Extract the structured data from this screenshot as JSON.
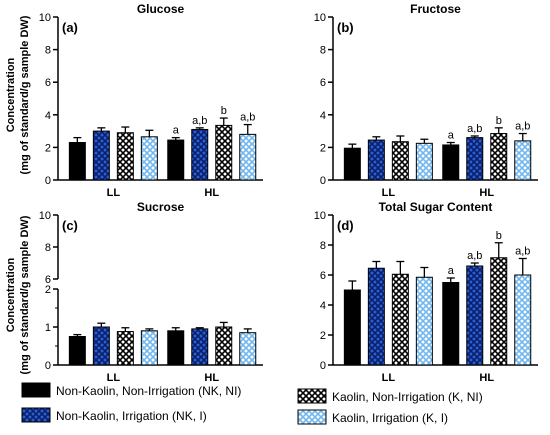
{
  "figure": {
    "ylabel_line1": "Concentration",
    "ylabel_line2": "(mg of standard/g sample DW)"
  },
  "legend": {
    "items": [
      {
        "label": "Non-Kaolin, Non-Irrigation (NK, NI)",
        "pattern": "solid-black"
      },
      {
        "label": "Kaolin, Non-Irrigation (K, NI)",
        "pattern": "check-black"
      },
      {
        "label": "Non-Kaolin, Irrigation (NK, I)",
        "pattern": "check-blue"
      },
      {
        "label": "Kaolin, Irrigation (K, I)",
        "pattern": "check-lightblue"
      }
    ]
  },
  "colors": {
    "nk_ni": "#000000",
    "nk_i": "#2b5fcf",
    "k_ni": "#000000",
    "k_i": "#6fb7ee"
  },
  "chart_data": [
    {
      "type": "bar",
      "panel": "(a)",
      "title": "Glucose",
      "categories": [
        "LL",
        "HL"
      ],
      "ylim": [
        0,
        10
      ],
      "yticks": [
        0,
        2,
        4,
        6,
        8,
        10
      ],
      "series": [
        {
          "name": "Non-Kaolin, Non-Irrigation (NK, NI)",
          "values": [
            2.3,
            2.45
          ],
          "errors": [
            0.3,
            0.15
          ],
          "letters": [
            "",
            "a"
          ]
        },
        {
          "name": "Non-Kaolin, Irrigation (NK, I)",
          "values": [
            3.0,
            3.1
          ],
          "errors": [
            0.2,
            0.1
          ],
          "letters": [
            "",
            "a,b"
          ]
        },
        {
          "name": "Kaolin, Non-Irrigation (K, NI)",
          "values": [
            2.9,
            3.35
          ],
          "errors": [
            0.35,
            0.45
          ],
          "letters": [
            "",
            "b"
          ]
        },
        {
          "name": "Kaolin, Irrigation (K, I)",
          "values": [
            2.65,
            2.8
          ],
          "errors": [
            0.4,
            0.6
          ],
          "letters": [
            "",
            "a,b"
          ]
        }
      ]
    },
    {
      "type": "bar",
      "panel": "(b)",
      "title": "Fructose",
      "categories": [
        "LL",
        "HL"
      ],
      "ylim": [
        0,
        10
      ],
      "yticks": [
        0,
        2,
        4,
        6,
        8,
        10
      ],
      "series": [
        {
          "name": "Non-Kaolin, Non-Irrigation (NK, NI)",
          "values": [
            1.95,
            2.15
          ],
          "errors": [
            0.25,
            0.15
          ],
          "letters": [
            "",
            "a"
          ]
        },
        {
          "name": "Non-Kaolin, Irrigation (NK, I)",
          "values": [
            2.45,
            2.6
          ],
          "errors": [
            0.2,
            0.1
          ],
          "letters": [
            "",
            "a,b"
          ]
        },
        {
          "name": "Kaolin, Non-Irrigation (K, NI)",
          "values": [
            2.35,
            2.85
          ],
          "errors": [
            0.35,
            0.35
          ],
          "letters": [
            "",
            "b"
          ]
        },
        {
          "name": "Kaolin, Irrigation (K, I)",
          "values": [
            2.25,
            2.4
          ],
          "errors": [
            0.25,
            0.45
          ],
          "letters": [
            "",
            "a,b"
          ]
        }
      ]
    },
    {
      "type": "bar",
      "panel": "(c)",
      "title": "Sucrose",
      "categories": [
        "LL",
        "HL"
      ],
      "broken_axis": true,
      "ylim_lower": [
        0,
        2
      ],
      "ylim_upper": [
        6,
        10
      ],
      "yticks_lower": [
        0,
        1,
        2
      ],
      "yticks_upper": [
        6,
        8,
        10
      ],
      "series": [
        {
          "name": "Non-Kaolin, Non-Irrigation (NK, NI)",
          "values": [
            0.75,
            0.9
          ],
          "errors": [
            0.05,
            0.08
          ],
          "letters": [
            "",
            ""
          ]
        },
        {
          "name": "Non-Kaolin, Irrigation (NK, I)",
          "values": [
            1.0,
            0.95
          ],
          "errors": [
            0.1,
            0.03
          ],
          "letters": [
            "",
            ""
          ]
        },
        {
          "name": "Kaolin, Non-Irrigation (K, NI)",
          "values": [
            0.88,
            1.0
          ],
          "errors": [
            0.1,
            0.12
          ],
          "letters": [
            "",
            ""
          ]
        },
        {
          "name": "Kaolin, Irrigation (K, I)",
          "values": [
            0.9,
            0.85
          ],
          "errors": [
            0.05,
            0.1
          ],
          "letters": [
            "",
            ""
          ]
        }
      ]
    },
    {
      "type": "bar",
      "panel": "(d)",
      "title": "Total Sugar Content",
      "categories": [
        "LL",
        "HL"
      ],
      "ylim": [
        0,
        10
      ],
      "yticks": [
        0,
        2,
        4,
        6,
        8,
        10
      ],
      "series": [
        {
          "name": "Non-Kaolin, Non-Irrigation (NK, NI)",
          "values": [
            5.0,
            5.5
          ],
          "errors": [
            0.6,
            0.3
          ],
          "letters": [
            "",
            "a"
          ]
        },
        {
          "name": "Non-Kaolin, Irrigation (NK, I)",
          "values": [
            6.45,
            6.6
          ],
          "errors": [
            0.45,
            0.2
          ],
          "letters": [
            "",
            "a,b"
          ]
        },
        {
          "name": "Kaolin, Non-Irrigation (K, NI)",
          "values": [
            6.05,
            7.15
          ],
          "errors": [
            0.85,
            1.0
          ],
          "letters": [
            "",
            "b"
          ]
        },
        {
          "name": "Kaolin, Irrigation (K, I)",
          "values": [
            5.85,
            6.0
          ],
          "errors": [
            0.65,
            1.1
          ],
          "letters": [
            "",
            "a,b"
          ]
        }
      ]
    }
  ]
}
